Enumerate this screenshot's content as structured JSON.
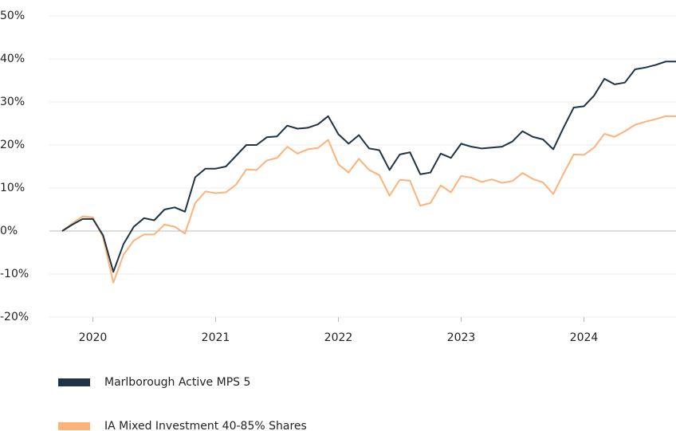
{
  "chart_data": {
    "type": "line",
    "x": [
      2019.75,
      2019.8333,
      2019.9167,
      2020,
      2020.0833,
      2020.1667,
      2020.25,
      2020.3333,
      2020.4167,
      2020.5,
      2020.5833,
      2020.6667,
      2020.75,
      2020.8333,
      2020.9167,
      2021,
      2021.0833,
      2021.1667,
      2021.25,
      2021.3333,
      2021.4167,
      2021.5,
      2021.5833,
      2021.6667,
      2021.75,
      2021.8333,
      2021.9167,
      2022,
      2022.0833,
      2022.1667,
      2022.25,
      2022.3333,
      2022.4167,
      2022.5,
      2022.5833,
      2022.6667,
      2022.75,
      2022.8333,
      2022.9167,
      2023,
      2023.0833,
      2023.1667,
      2023.25,
      2023.3333,
      2023.4167,
      2023.5,
      2023.5833,
      2023.6667,
      2023.75,
      2023.8333,
      2023.9167,
      2024,
      2024.0833,
      2024.1667,
      2024.25,
      2024.3333,
      2024.4167,
      2024.5,
      2024.5833,
      2024.6667,
      2024.75
    ],
    "series": [
      {
        "name": "Marlborough Active MPS 5",
        "color": "#1f3344",
        "values": [
          0,
          1.5,
          2.8,
          2.8,
          -1,
          -9.5,
          -3,
          1,
          3,
          2.5,
          5,
          5.5,
          4.5,
          12.5,
          14.5,
          14.5,
          15,
          17.5,
          20,
          20,
          21.8,
          22,
          24.5,
          23.8,
          24,
          24.8,
          26.7,
          22.5,
          20.3,
          22.3,
          19.2,
          18.8,
          14.2,
          17.8,
          18.3,
          13.2,
          13.6,
          18,
          17,
          20.3,
          19.6,
          19.2,
          19.4,
          19.6,
          20.8,
          23.2,
          21.9,
          21.3,
          19,
          24,
          28.7,
          29,
          31.5,
          35.4,
          34.1,
          34.5,
          37.6,
          38,
          38.6,
          39.4,
          39.4
        ]
      },
      {
        "name": "IA Mixed Investment 40-85% Shares",
        "color": "#fdb27a",
        "values": [
          0,
          1.8,
          3.4,
          3.2,
          -1.5,
          -12,
          -5.5,
          -2.2,
          -0.8,
          -0.8,
          1.5,
          1,
          -0.6,
          6.5,
          9.2,
          8.8,
          9,
          10.8,
          14.3,
          14.2,
          16.4,
          17,
          19.6,
          18,
          19,
          19.3,
          21.2,
          15.5,
          13.6,
          16.8,
          14.2,
          13,
          8.2,
          11.9,
          11.7,
          5.9,
          6.5,
          10.6,
          9,
          12.8,
          12.4,
          11.4,
          12,
          11.2,
          11.6,
          13.5,
          12.1,
          11.3,
          8.6,
          13.3,
          17.8,
          17.7,
          19.4,
          22.6,
          21.9,
          23.2,
          24.7,
          25.4,
          26,
          26.7,
          26.7
        ]
      }
    ],
    "xlim": [
      2019.75,
      2024.75
    ],
    "xticks": [
      2020,
      2021,
      2022,
      2023,
      2024
    ],
    "ylim": [
      -20,
      50
    ],
    "yticks": [
      {
        "value": -20,
        "label": "-20%"
      },
      {
        "value": -10,
        "label": "-10%"
      },
      {
        "value": 0,
        "label": "0%"
      },
      {
        "value": 10,
        "label": "10%"
      },
      {
        "value": 20,
        "label": "20%"
      },
      {
        "value": 30,
        "label": "30%"
      },
      {
        "value": 40,
        "label": "40%"
      },
      {
        "value": 50,
        "label": "50%"
      }
    ],
    "grid": true
  }
}
